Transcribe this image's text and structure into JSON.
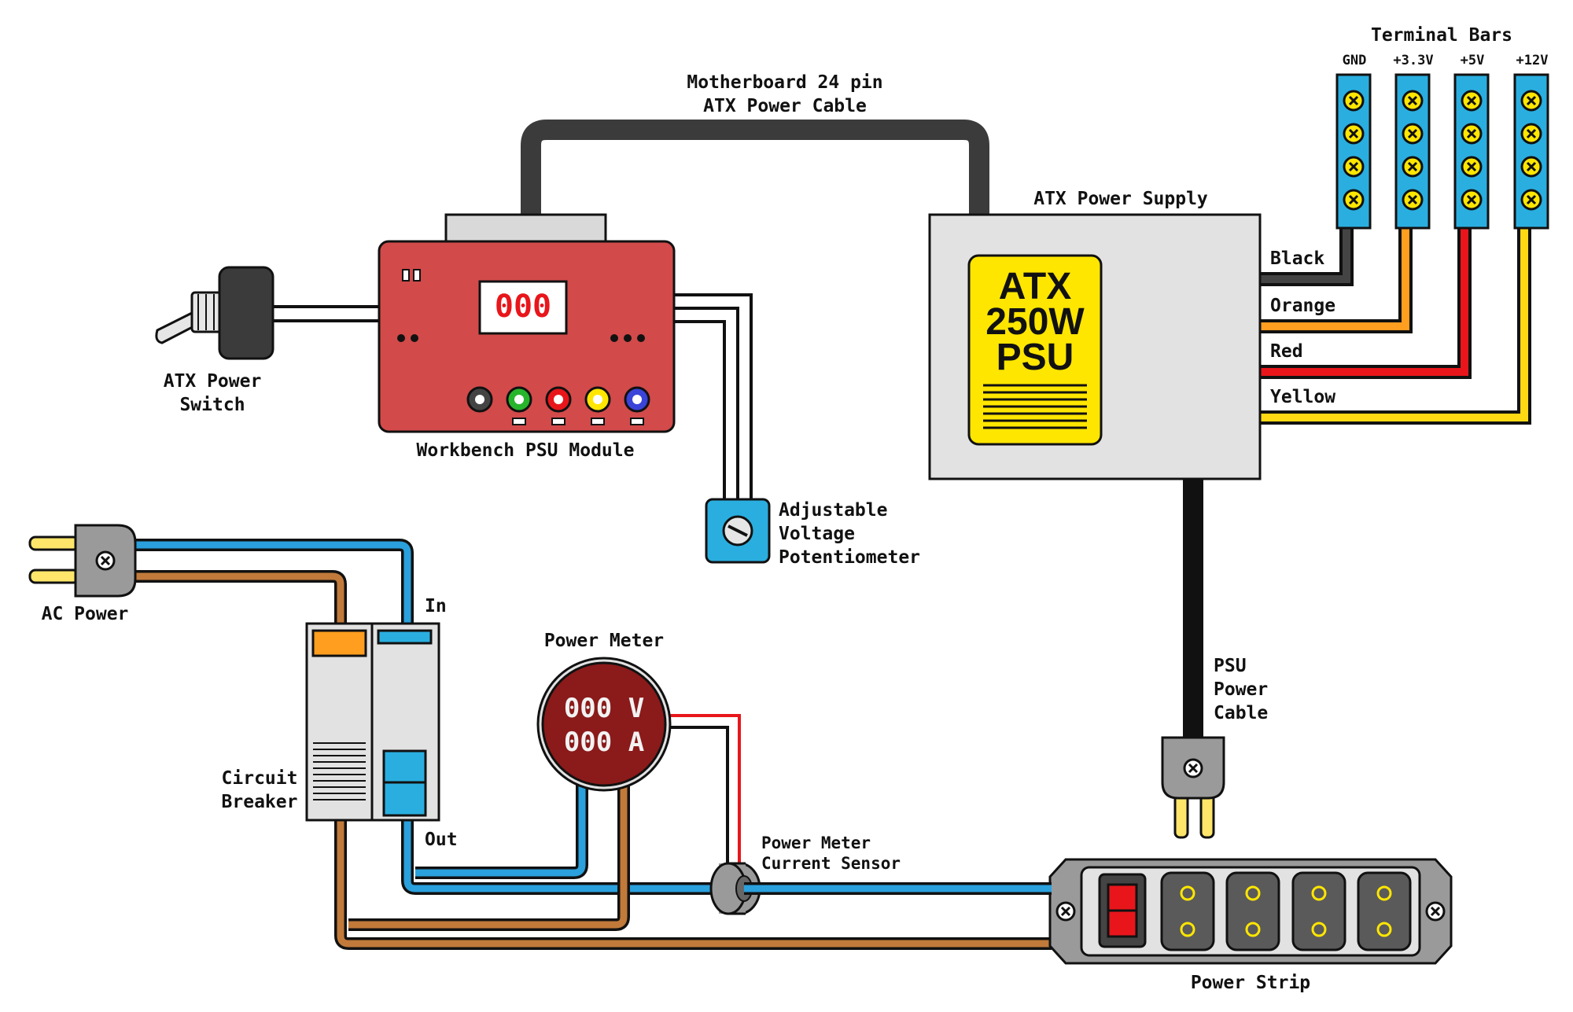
{
  "labels": {
    "motherboard_line1": "Motherboard 24 pin",
    "motherboard_line2": "ATX Power Cable",
    "terminal_bars": "Terminal Bars",
    "gnd": "GND",
    "v33": "+3.3V",
    "v5": "+5V",
    "v12": "+12V",
    "atx_power_supply": "ATX Power Supply",
    "psu_line1": "ATX",
    "psu_line2": "250W",
    "psu_line3": "PSU",
    "black": "Black",
    "orange": "Orange",
    "red": "Red",
    "yellow": "Yellow",
    "module_display": "000",
    "workbench_module": "Workbench PSU Module",
    "switch_line1": "ATX Power",
    "switch_line2": "Switch",
    "pot_line1": "Adjustable",
    "pot_line2": "Voltage",
    "pot_line3": "Potentiometer",
    "ac_power": "AC Power",
    "in": "In",
    "out": "Out",
    "circuit_line1": "Circuit",
    "circuit_line2": "Breaker",
    "power_meter": "Power Meter",
    "meter_volts": "000 V",
    "meter_amps": "000 A",
    "sensor_line1": "Power Meter",
    "sensor_line2": "Current Sensor",
    "psu_cable_line1": "PSU",
    "psu_cable_line2": "Power",
    "psu_cable_line3": "Cable",
    "power_strip": "Power Strip"
  },
  "colors": {
    "module_red": "#d24a4a",
    "meter_maroon": "#8b1a1a",
    "psu_yellow": "#ffe600",
    "terminal_blue": "#2aaee0",
    "wire_blue": "#2aa0dc",
    "wire_brown": "#c17a3a",
    "wire_orange": "#ff9e1f",
    "wire_red": "#e8161b",
    "wire_yellow": "#ffd814",
    "cable_dark": "#3b3b3b"
  }
}
